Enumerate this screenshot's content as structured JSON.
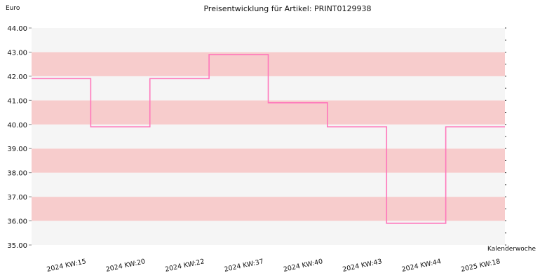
{
  "chart_data": {
    "type": "line",
    "step": true,
    "title": "Preisentwicklung für Artikel: PRINT0129938",
    "ylabel": "Euro",
    "xlabel": "Kalenderwoche",
    "ylim": [
      35.0,
      44.0
    ],
    "yticks": [
      "35.00",
      "36.00",
      "37.00",
      "38.00",
      "39.00",
      "40.00",
      "41.00",
      "42.00",
      "43.00",
      "44.00"
    ],
    "categories": [
      "2024 KW:15",
      "2024 KW:20",
      "2024 KW:22",
      "2024 KW:37",
      "2024 KW:40",
      "2024 KW:43",
      "2024 KW:44",
      "2025 KW:18"
    ],
    "series": [
      {
        "values": [
          41.9,
          39.9,
          41.9,
          42.9,
          40.9,
          39.9,
          35.9,
          39.9
        ]
      }
    ],
    "grid": true,
    "band_colors": [
      "#f5f5f5",
      "#f7cccc"
    ],
    "line_color": "#ff77bb"
  }
}
